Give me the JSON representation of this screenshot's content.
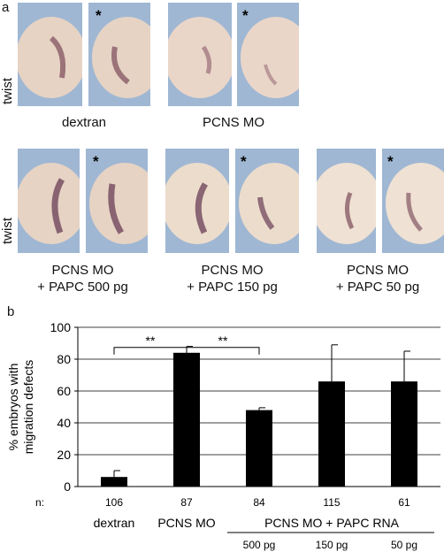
{
  "panel_a": {
    "letter": "a",
    "row_label": "twist",
    "star": "*",
    "captions": {
      "dextran": "dextran",
      "pcns_mo": "PCNS MO",
      "papc500_l1": "PCNS MO",
      "papc500_l2": "+ PAPC 500 pg",
      "papc150_l1": "PCNS MO",
      "papc150_l2": "+ PAPC 150 pg",
      "papc50_l1": "PCNS MO",
      "papc50_l2": "+ PAPC 50 pg"
    }
  },
  "panel_b": {
    "letter": "b",
    "n_label": "n:"
  },
  "chart_data": {
    "type": "bar",
    "categories": [
      "dextran",
      "PCNS MO",
      "500 pg",
      "150 pg",
      "50 pg"
    ],
    "values": [
      6,
      84,
      48,
      66,
      66
    ],
    "error": [
      4,
      4,
      1.5,
      23,
      19
    ],
    "n": [
      "106",
      "87",
      "84",
      "115",
      "61"
    ],
    "ylabel_l1": "% embryos with",
    "ylabel_l2": "migration defects",
    "group_label": "PCNS MO + PAPC RNA",
    "significance": [
      {
        "from": 0,
        "to": 1,
        "label": "**"
      },
      {
        "from": 1,
        "to": 2,
        "label": "**"
      }
    ],
    "yticks": [
      0,
      20,
      40,
      60,
      80,
      100
    ],
    "ylim": [
      0,
      100
    ],
    "grid": true,
    "bar_color": "#000000"
  }
}
